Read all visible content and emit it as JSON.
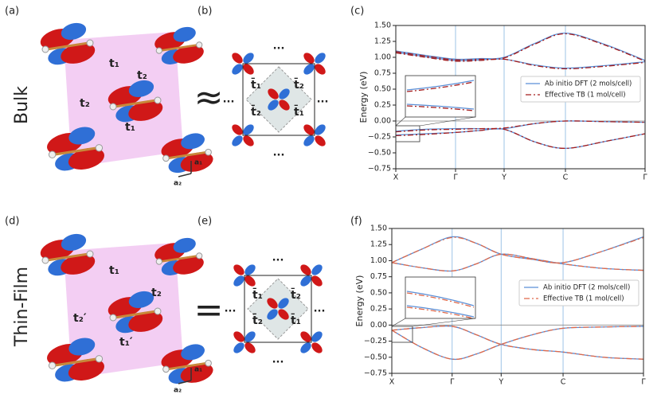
{
  "figure": {
    "panel_labels": [
      "(a)",
      "(b)",
      "(c)",
      "(d)",
      "(e)",
      "(f)"
    ],
    "rows": [
      "Bulk",
      "Thin-Film"
    ],
    "a": {
      "hoppings": [
        "t₁",
        "t₂",
        "t₂",
        "t₁"
      ],
      "axes": [
        "a₁",
        "a₂"
      ]
    },
    "b": {
      "relation": "≈",
      "hoppings": [
        "t̄₁",
        "t̄₂",
        "t̄₂",
        "t̄₁"
      ],
      "dots": "..."
    },
    "d": {
      "hoppings": [
        "t₁",
        "t₂",
        "t₂′",
        "t₁′"
      ],
      "axes": [
        "a₁",
        "a₂"
      ]
    },
    "e": {
      "relation": "=",
      "hoppings": [
        "t̄₁",
        "t̄₂",
        "t̄₂",
        "t̄₁"
      ],
      "dots": "..."
    }
  },
  "chart_data": [
    {
      "type": "line",
      "ylabel": "Energy (eV)",
      "x": [
        0,
        0.375,
        0.75,
        1.05,
        1.36,
        1.75,
        2.13,
        2.63,
        3.13
      ],
      "xlim": [
        0,
        3.13
      ],
      "xticks": [
        {
          "value": 0,
          "label": "X"
        },
        {
          "value": 0.75,
          "label": "Γ"
        },
        {
          "value": 1.36,
          "label": "Y"
        },
        {
          "value": 2.13,
          "label": "C"
        },
        {
          "value": 3.13,
          "label": "Γ"
        }
      ],
      "ylim": [
        -0.75,
        1.5
      ],
      "yticks": [
        {
          "value": -0.75,
          "label": "−0.75"
        },
        {
          "value": -0.5,
          "label": "−0.50"
        },
        {
          "value": -0.25,
          "label": "−0.25"
        },
        {
          "value": 0,
          "label": "0.00"
        },
        0.25,
        {
          "value": 0.5,
          "label": "0.50"
        },
        0.75,
        {
          "value": 1,
          "label": "1.00"
        },
        1.25,
        {
          "value": 1.5,
          "label": "1.50"
        }
      ],
      "hline": 0,
      "xgrid_color": "#9cc3e6",
      "legend": "center right",
      "series": [
        {
          "name": "Ab initio DFT (2 mols/cell)",
          "color": "#5b8fd6",
          "style": "solid",
          "bands": [
            [
              1.1,
              1.03,
              0.97,
              0.98,
              1.0,
              1.22,
              1.38,
              1.2,
              0.95
            ],
            [
              1.08,
              1.01,
              0.95,
              0.96,
              0.97,
              0.88,
              0.83,
              0.87,
              0.93
            ],
            [
              -0.16,
              -0.13,
              -0.12,
              -0.12,
              -0.12,
              -0.04,
              0.0,
              -0.01,
              -0.02
            ],
            [
              -0.22,
              -0.2,
              -0.18,
              -0.15,
              -0.13,
              -0.33,
              -0.43,
              -0.32,
              -0.2
            ]
          ]
        },
        {
          "name": "Effective TB (1 mol/cell)",
          "color": "#a51c1c",
          "style": "dash-dot",
          "bands": [
            [
              1.09,
              1.02,
              0.96,
              0.97,
              0.99,
              1.21,
              1.37,
              1.19,
              0.94
            ],
            [
              1.07,
              1.0,
              0.94,
              0.95,
              0.97,
              0.87,
              0.82,
              0.86,
              0.92
            ],
            [
              -0.17,
              -0.14,
              -0.13,
              -0.12,
              -0.11,
              -0.04,
              0.0,
              -0.01,
              -0.02
            ],
            [
              -0.23,
              -0.21,
              -0.18,
              -0.15,
              -0.13,
              -0.33,
              -0.43,
              -0.32,
              -0.2
            ]
          ]
        }
      ]
    },
    {
      "type": "line",
      "ylabel": "Energy (eV)",
      "x": [
        0,
        0.375,
        0.75,
        1.05,
        1.36,
        1.75,
        2.13,
        2.63,
        3.13
      ],
      "xlim": [
        0,
        3.13
      ],
      "xticks": [
        {
          "value": 0,
          "label": "X"
        },
        {
          "value": 0.75,
          "label": "Γ"
        },
        {
          "value": 1.36,
          "label": "Y"
        },
        {
          "value": 2.13,
          "label": "C"
        },
        {
          "value": 3.13,
          "label": "Γ"
        }
      ],
      "ylim": [
        -0.75,
        1.5
      ],
      "yticks": [
        {
          "value": -0.75,
          "label": "−0.75"
        },
        {
          "value": -0.5,
          "label": "−0.50"
        },
        {
          "value": -0.25,
          "label": "−0.25"
        },
        {
          "value": 0,
          "label": "0.00"
        },
        0.25,
        {
          "value": 0.5,
          "label": "0.50"
        },
        0.75,
        {
          "value": 1,
          "label": "1.00"
        },
        1.25,
        {
          "value": 1.5,
          "label": "1.50"
        }
      ],
      "hline": 0,
      "xgrid_color": "#9cc3e6",
      "legend": "center right",
      "series": [
        {
          "name": "Ab initio DFT (2 mols/cell)",
          "color": "#5b8fd6",
          "style": "solid",
          "bands": [
            [
              0.97,
              1.18,
              1.37,
              1.27,
              1.1,
              1.02,
              0.97,
              1.15,
              1.37
            ],
            [
              0.97,
              0.89,
              0.84,
              0.95,
              1.1,
              1.03,
              0.95,
              0.88,
              0.85
            ],
            [
              -0.08,
              -0.35,
              -0.53,
              -0.45,
              -0.3,
              -0.15,
              -0.05,
              -0.03,
              -0.02
            ],
            [
              -0.08,
              -0.04,
              -0.02,
              -0.15,
              -0.3,
              -0.38,
              -0.42,
              -0.5,
              -0.53
            ]
          ]
        },
        {
          "name": "Effective TB (1 mol/cell)",
          "color": "#e0694a",
          "style": "dash-dot",
          "bands": [
            [
              0.97,
              1.18,
              1.36,
              1.27,
              1.1,
              1.02,
              0.97,
              1.15,
              1.36
            ],
            [
              0.97,
              0.89,
              0.84,
              0.95,
              1.1,
              1.03,
              0.95,
              0.88,
              0.85
            ],
            [
              -0.08,
              -0.35,
              -0.53,
              -0.45,
              -0.3,
              -0.15,
              -0.05,
              -0.03,
              -0.02
            ],
            [
              -0.08,
              -0.04,
              -0.02,
              -0.15,
              -0.3,
              -0.38,
              -0.42,
              -0.5,
              -0.53
            ]
          ]
        }
      ]
    }
  ]
}
